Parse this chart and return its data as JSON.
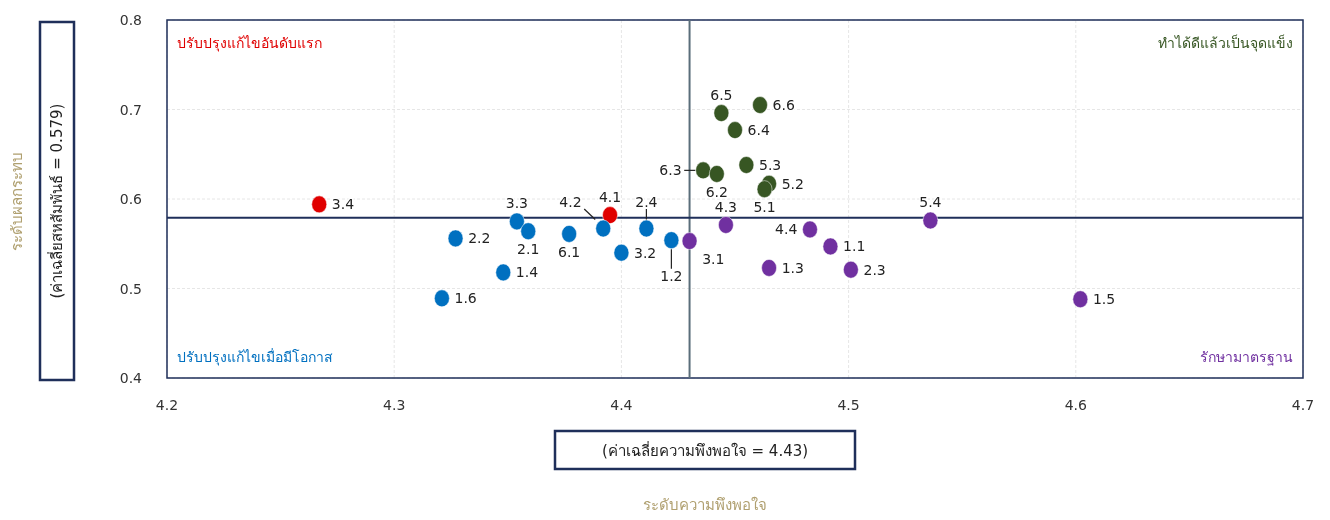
{
  "chart_data": {
    "type": "scatter",
    "xlim": [
      4.2,
      4.7
    ],
    "xticks": [
      4.2,
      4.3,
      4.4,
      4.5,
      4.6,
      4.7
    ],
    "ylim": [
      0.4,
      0.8
    ],
    "yticks": [
      0.4,
      0.5,
      0.6,
      0.7,
      0.8
    ],
    "grid": true,
    "marker": "circle",
    "series": [
      {
        "color": "#e00000",
        "x": [
          4.267,
          4.395
        ],
        "values": [
          0.594,
          0.582
        ]
      },
      {
        "color": "#375623",
        "x": [
          4.444,
          4.461,
          4.45,
          4.436,
          4.442,
          4.455,
          4.465,
          4.463
        ],
        "values": [
          0.696,
          0.705,
          0.677,
          0.632,
          0.628,
          0.638,
          0.617,
          0.611
        ]
      },
      {
        "color": "#0070c0",
        "x": [
          4.354,
          4.359,
          4.327,
          4.348,
          4.321,
          4.377,
          4.392,
          4.4,
          4.411,
          4.422
        ],
        "values": [
          0.575,
          0.564,
          0.556,
          0.518,
          0.489,
          0.561,
          0.567,
          0.54,
          0.567,
          0.554
        ]
      },
      {
        "color": "#7030a0",
        "x": [
          4.43,
          4.446,
          4.483,
          4.492,
          4.465,
          4.501,
          4.536,
          4.602
        ],
        "values": [
          0.553,
          0.571,
          0.566,
          0.547,
          0.523,
          0.521,
          0.576,
          0.488
        ]
      }
    ],
    "ref_lines": [
      {
        "axis": "x",
        "value": 4.43,
        "color": "#5a6e7a"
      },
      {
        "axis": "y",
        "value": 0.579,
        "color": "#1f2f5a"
      }
    ],
    "annotations": [
      "ปรับปรุงแก้ไขอันดับแรก",
      "ทำได้ดีแล้วเป็นจุดแข็ง",
      "ปรับปรุงแก้ไขเมื่อมีโอกาส",
      "รักษามาตรฐาน",
      "(ค่าเฉลี่ยความพึงพอใจ = 4.43)",
      "(ค่าเฉลี่ยสหสัมพันธ์ = 0.579)",
      "ระดับความพึงพอใจ",
      "ระดับผลกระทบ",
      {
        "text": "3.4",
        "x": 4.267,
        "y": 0.594
      },
      {
        "text": "4.1",
        "x": 4.395,
        "y": 0.582
      },
      {
        "text": "6.5",
        "x": 4.444,
        "y": 0.696
      },
      {
        "text": "6.6",
        "x": 4.461,
        "y": 0.705
      },
      {
        "text": "6.4",
        "x": 4.45,
        "y": 0.677
      },
      {
        "text": "6.3",
        "x": 4.436,
        "y": 0.632
      },
      {
        "text": "6.2",
        "x": 4.442,
        "y": 0.628
      },
      {
        "text": "5.3",
        "x": 4.455,
        "y": 0.638
      },
      {
        "text": "5.2",
        "x": 4.465,
        "y": 0.617
      },
      {
        "text": "5.1",
        "x": 4.463,
        "y": 0.611
      },
      {
        "text": "3.3",
        "x": 4.354,
        "y": 0.575
      },
      {
        "text": "2.1",
        "x": 4.359,
        "y": 0.564
      },
      {
        "text": "2.2",
        "x": 4.327,
        "y": 0.556
      },
      {
        "text": "1.4",
        "x": 4.348,
        "y": 0.518
      },
      {
        "text": "1.6",
        "x": 4.321,
        "y": 0.489
      },
      {
        "text": "6.1",
        "x": 4.377,
        "y": 0.561
      },
      {
        "text": "4.2",
        "x": 4.392,
        "y": 0.567
      },
      {
        "text": "3.2",
        "x": 4.4,
        "y": 0.54
      },
      {
        "text": "2.4",
        "x": 4.411,
        "y": 0.567
      },
      {
        "text": "1.2",
        "x": 4.422,
        "y": 0.554
      },
      {
        "text": "3.1",
        "x": 4.43,
        "y": 0.553
      },
      {
        "text": "4.3",
        "x": 4.446,
        "y": 0.571
      },
      {
        "text": "4.4",
        "x": 4.483,
        "y": 0.566
      },
      {
        "text": "1.1",
        "x": 4.492,
        "y": 0.547
      },
      {
        "text": "1.3",
        "x": 4.465,
        "y": 0.523
      },
      {
        "text": "2.3",
        "x": 4.501,
        "y": 0.521
      },
      {
        "text": "5.4",
        "x": 4.536,
        "y": 0.576
      },
      {
        "text": "1.5",
        "x": 4.602,
        "y": 0.488
      }
    ]
  }
}
